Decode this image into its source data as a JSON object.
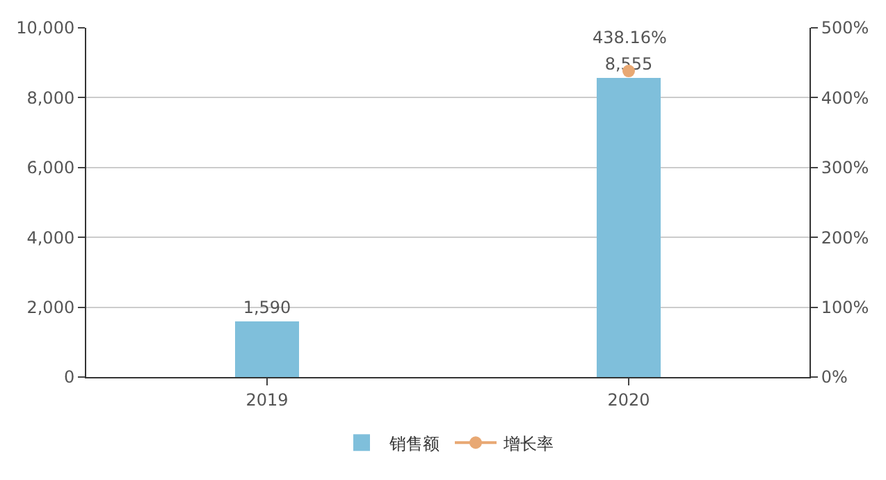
{
  "chart_data": {
    "type": "bar",
    "categories": [
      "2019",
      "2020"
    ],
    "series": [
      {
        "name": "销售额",
        "color": "#7fbfdb",
        "values": [
          1590,
          8555
        ],
        "value_labels": [
          "1,590",
          "8,555"
        ]
      },
      {
        "name": "增长率",
        "type": "line",
        "axis": "y2",
        "color": "#e8a873",
        "values": [
          null,
          438.16
        ],
        "value_labels": [
          null,
          "438.16%"
        ],
        "marker": "circle"
      }
    ],
    "ylim": [
      0,
      10000
    ],
    "yticks": [
      0,
      {
        "value": 2000,
        "label": "2,000"
      },
      {
        "value": 4000,
        "label": "4,000"
      },
      {
        "value": 6000,
        "label": "6,000"
      },
      {
        "value": 8000,
        "label": "8,000"
      },
      {
        "value": 10000,
        "label": "10,000"
      }
    ],
    "y2lim": [
      0,
      500
    ],
    "y2ticks": [
      {
        "value": 0,
        "label": "0%"
      },
      {
        "value": 100,
        "label": "100%"
      },
      {
        "value": 200,
        "label": "200%"
      },
      {
        "value": 300,
        "label": "300%"
      },
      {
        "value": 400,
        "label": "400%"
      },
      {
        "value": 500,
        "label": "500%"
      }
    ],
    "grid": "y",
    "legend": "bottom"
  }
}
